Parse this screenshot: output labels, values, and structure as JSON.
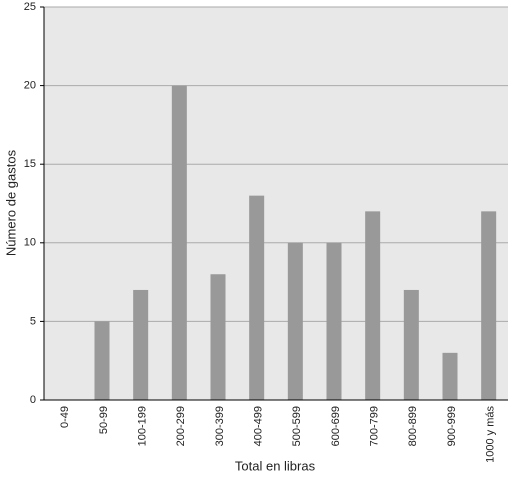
{
  "chart_data": {
    "type": "bar",
    "x_label": "Total en libras",
    "y_label": "Número de gastos",
    "categories": [
      "0-49",
      "50-99",
      "100-199",
      "200-299",
      "300-399",
      "400-499",
      "500-599",
      "600-699",
      "700-799",
      "800-899",
      "900-999",
      "1000 y más"
    ],
    "values": [
      0,
      5,
      7,
      20,
      8,
      13,
      10,
      10,
      12,
      7,
      3,
      12
    ],
    "color": "#999999",
    "ylim": [
      0,
      25
    ],
    "yticks": [
      0,
      5,
      10,
      15,
      20,
      25
    ],
    "grid": true
  }
}
